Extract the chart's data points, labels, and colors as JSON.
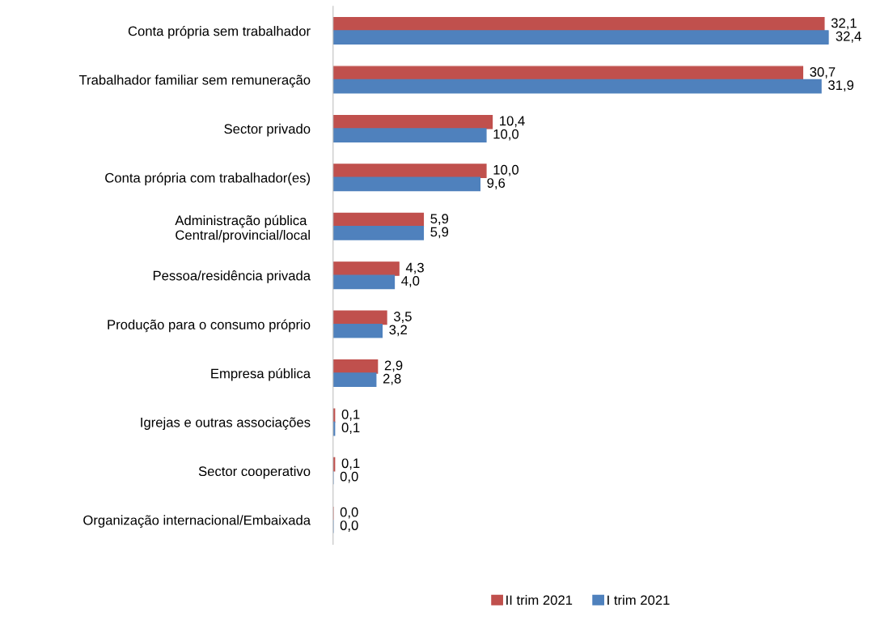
{
  "chart_data": {
    "type": "bar",
    "orientation": "horizontal",
    "categories": [
      "Conta própria sem trabalhador",
      "Trabalhador familiar sem remuneração",
      "Sector privado",
      "Conta própria com trabalhador(es)",
      "Administração pública \nCentral/provincial/local",
      "Pessoa/residência privada",
      "Produção para o consumo próprio",
      "Empresa pública",
      "Igrejas e outras associações",
      "Sector cooperativo",
      "Organização internacional/Embaixada"
    ],
    "series": [
      {
        "name": "II trim 2021",
        "color": "#c0504d",
        "values": [
          32.1,
          30.7,
          10.4,
          10.0,
          5.9,
          4.3,
          3.5,
          2.9,
          0.1,
          0.1,
          0.0
        ],
        "value_labels": [
          "32,1",
          "30,7",
          "10,4",
          "10,0",
          "5,9",
          "4,3",
          "3,5",
          "2,9",
          "0,1",
          "0,1",
          "0,0"
        ]
      },
      {
        "name": "I trim 2021",
        "color": "#4f81bd",
        "values": [
          32.4,
          31.9,
          10.0,
          9.6,
          5.9,
          4.0,
          3.2,
          2.8,
          0.1,
          0.0,
          0.0
        ],
        "value_labels": [
          "32,4",
          "31,9",
          "10,0",
          "9,6",
          "5,9",
          "4,0",
          "3,2",
          "2,8",
          "0,1",
          "0,0",
          "0,0"
        ]
      }
    ],
    "legend": "bottom",
    "grid": false
  }
}
